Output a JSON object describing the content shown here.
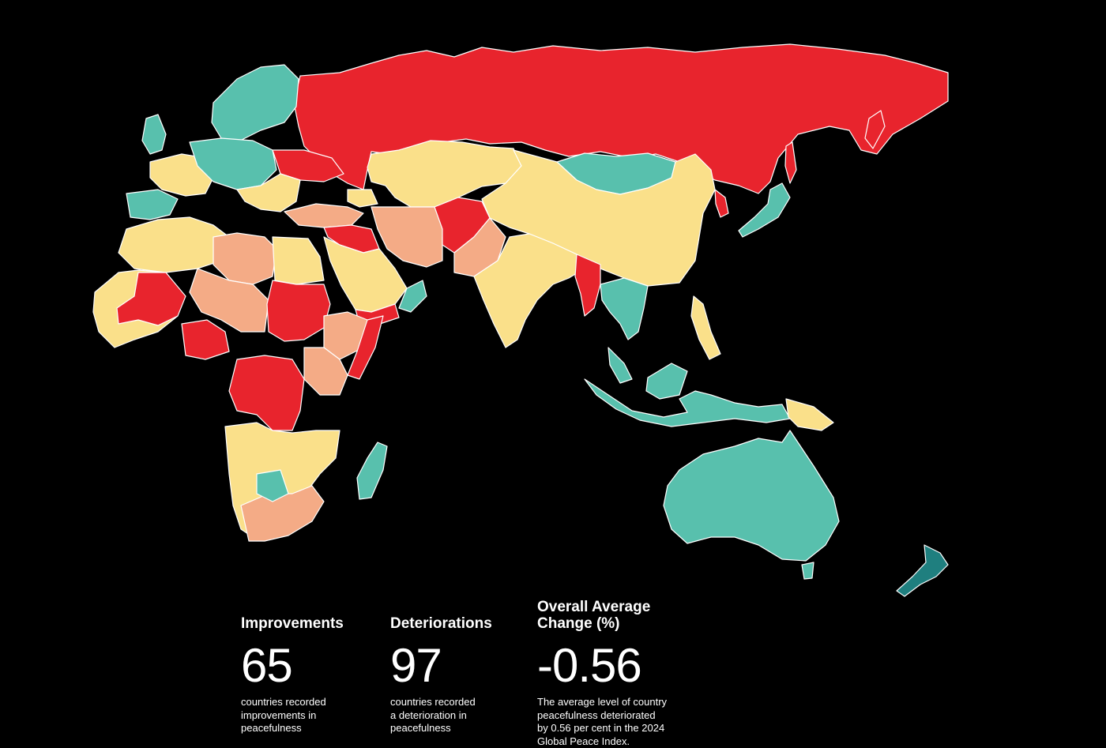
{
  "map": {
    "colors": {
      "background": "#000000",
      "border": "#ffffff",
      "strong_improvement": "#1f7f7f",
      "improvement": "#58c0ad",
      "small_change": "#fae08a",
      "deterioration": "#f4ab86",
      "strong_deterioration": "#e8242d"
    }
  },
  "stats": {
    "improvements": {
      "heading": "Improvements",
      "value": "65",
      "description": [
        "countries recorded",
        "improvements in",
        "peacefulness"
      ]
    },
    "deteriorations": {
      "heading": "Deteriorations",
      "value": "97",
      "description": [
        "countries recorded",
        "a deterioration in",
        "peacefulness"
      ]
    },
    "average_change": {
      "heading": [
        "Overall Average",
        "Change (%)"
      ],
      "value": "-0.56",
      "description": [
        "The average level of country",
        "peacefulness deteriorated",
        "by 0.56 per cent in the 2024",
        "Global Peace Index."
      ]
    }
  }
}
